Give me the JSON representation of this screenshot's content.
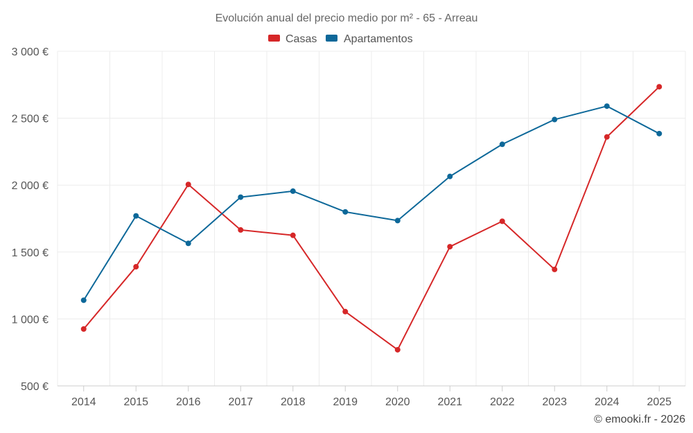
{
  "chart_data": {
    "type": "line",
    "title": "Evolución anual del precio medio por m² - 65 - Arreau",
    "categories": [
      "2014",
      "2015",
      "2016",
      "2017",
      "2018",
      "2019",
      "2020",
      "2021",
      "2022",
      "2023",
      "2024",
      "2025"
    ],
    "series": [
      {
        "name": "Casas",
        "color": "#d62728",
        "values": [
          925,
          1390,
          2005,
          1665,
          1625,
          1055,
          770,
          1540,
          1730,
          1370,
          2360,
          2735
        ]
      },
      {
        "name": "Apartamentos",
        "color": "#0d6899",
        "values": [
          1140,
          1770,
          1565,
          1910,
          1955,
          1800,
          1735,
          2065,
          2305,
          2490,
          2590,
          2385
        ]
      }
    ],
    "y_ticks": [
      "3 000 €",
      "2 500 €",
      "2 000 €",
      "1 500 €",
      "1 000 €",
      "500 €"
    ],
    "y_tick_values": [
      3000,
      2500,
      2000,
      1500,
      1000,
      500
    ],
    "ylim": [
      500,
      3000
    ],
    "xlabel": "",
    "ylabel": "",
    "grid": true,
    "legend_position": "top-center"
  },
  "credit": "© emooki.fr - 2026"
}
